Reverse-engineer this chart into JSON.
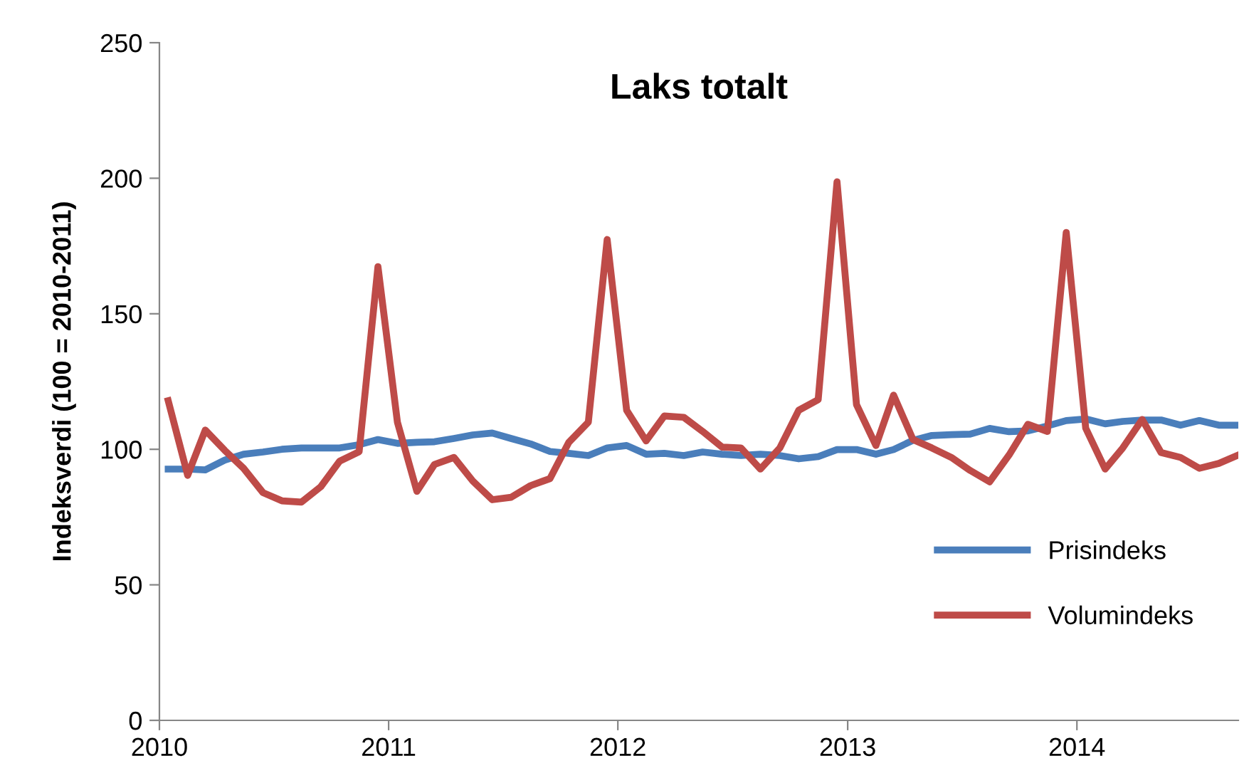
{
  "chart_data": {
    "type": "line",
    "title": "Laks totalt",
    "ylabel": "Indeksverdi (100 = 2010-2011)",
    "x": [
      "2010-01-15",
      "2010-02-15",
      "2010-03-15",
      "2010-04-15",
      "2010-05-15",
      "2010-06-15",
      "2010-07-15",
      "2010-08-15",
      "2010-09-15",
      "2010-10-15",
      "2010-11-15",
      "2010-12-15",
      "2011-01-15",
      "2011-02-15",
      "2011-03-15",
      "2011-04-15",
      "2011-05-15",
      "2011-06-15",
      "2011-07-15",
      "2011-08-15",
      "2011-09-15",
      "2011-10-15",
      "2011-11-15",
      "2011-12-15",
      "2012-01-15",
      "2012-02-15",
      "2012-03-15",
      "2012-04-15",
      "2012-05-15",
      "2012-06-15",
      "2012-07-15",
      "2012-08-15",
      "2012-09-15",
      "2012-10-15",
      "2012-11-15",
      "2012-12-15",
      "2013-01-15",
      "2013-02-15",
      "2013-03-15",
      "2013-04-15",
      "2013-05-15",
      "2013-06-15",
      "2013-07-15",
      "2013-08-15",
      "2013-09-15",
      "2013-10-15",
      "2013-11-15",
      "2013-12-15",
      "2014-01-15",
      "2014-02-15",
      "2014-03-15",
      "2014-04-15",
      "2014-05-15",
      "2014-06-15",
      "2014-07-15",
      "2014-08-15",
      "2014-09-15"
    ],
    "series": [
      {
        "name": "Prisindeks",
        "color": "#4a7ebb",
        "values": [
          92.7,
          92.7,
          92.4,
          96,
          98.2,
          99,
          100,
          100.5,
          100.5,
          100.5,
          101.7,
          103.6,
          102.2,
          102.6,
          102.8,
          104,
          105.3,
          106,
          104,
          102,
          99.2,
          98.5,
          97.7,
          100.5,
          101.4,
          98.2,
          98.5,
          97.7,
          99,
          98.2,
          97.7,
          98.2,
          97.7,
          96.5,
          97.3,
          99.9,
          99.9,
          98.2,
          99.9,
          103.3,
          105.1,
          105.4,
          105.6,
          107.7,
          106.5,
          106.8,
          108.6,
          110.6,
          111.2,
          109.4,
          110.3,
          110.8,
          110.8,
          108.9,
          110.6,
          108.9,
          108.9
        ]
      },
      {
        "name": "Volumindeks",
        "color": "#be4b48",
        "values": [
          117.9,
          90.4,
          107.1,
          99.6,
          93,
          84,
          81,
          80.5,
          86.2,
          95.6,
          99.1,
          167.4,
          110,
          84.5,
          94.4,
          97,
          88.3,
          81.4,
          82.3,
          86.6,
          89.2,
          102.6,
          110,
          177.4,
          114.4,
          103.1,
          112.3,
          111.8,
          106.6,
          100.8,
          100.5,
          92.7,
          100.5,
          114.4,
          118.3,
          198.7,
          116.5,
          101.4,
          120,
          103.6,
          100.5,
          97,
          92.2,
          88,
          97.9,
          109.2,
          106.6,
          180,
          107.8,
          92.7,
          100.5,
          111,
          98.8,
          97,
          93,
          94.8,
          97.9
        ]
      }
    ],
    "xlim": [
      "2010-01-01",
      "2014-09-15"
    ],
    "xticks": [
      {
        "value": "2010-01-01",
        "label": "2010"
      },
      {
        "value": "2011-01-01",
        "label": "2011"
      },
      {
        "value": "2012-01-01",
        "label": "2012"
      },
      {
        "value": "2013-01-01",
        "label": "2013"
      },
      {
        "value": "2014-01-01",
        "label": "2014"
      }
    ],
    "ylim": [
      0,
      250
    ],
    "yticks": [
      0,
      50,
      100,
      150,
      200,
      250
    ],
    "grid": false,
    "legend": "bottom right",
    "marker": "none",
    "line_style": "solid"
  }
}
